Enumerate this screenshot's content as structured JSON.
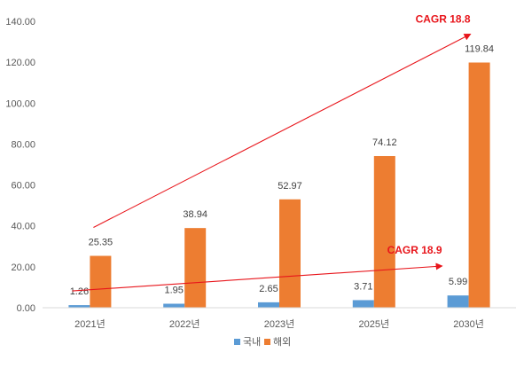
{
  "chart_data": {
    "type": "bar",
    "categories": [
      "2021년",
      "2022년",
      "2023년",
      "2025년",
      "2030년"
    ],
    "series": [
      {
        "name": "국내",
        "color": "#5b9bd5",
        "values": [
          1.26,
          1.95,
          2.65,
          3.71,
          5.99
        ]
      },
      {
        "name": "해외",
        "color": "#ed7d31",
        "values": [
          25.35,
          38.94,
          52.97,
          74.12,
          119.84
        ]
      }
    ],
    "ylim": [
      0,
      140
    ],
    "yticks": [
      "0.00",
      "20.00",
      "40.00",
      "60.00",
      "80.00",
      "100.00",
      "120.00",
      "140.00"
    ],
    "grid": false,
    "legend_position": "bottom",
    "annotations": [
      {
        "text": "CAGR 18.8",
        "series": "해외",
        "color": "#e8151b"
      },
      {
        "text": "CAGR 18.9",
        "series": "국내",
        "color": "#e8151b"
      }
    ]
  }
}
